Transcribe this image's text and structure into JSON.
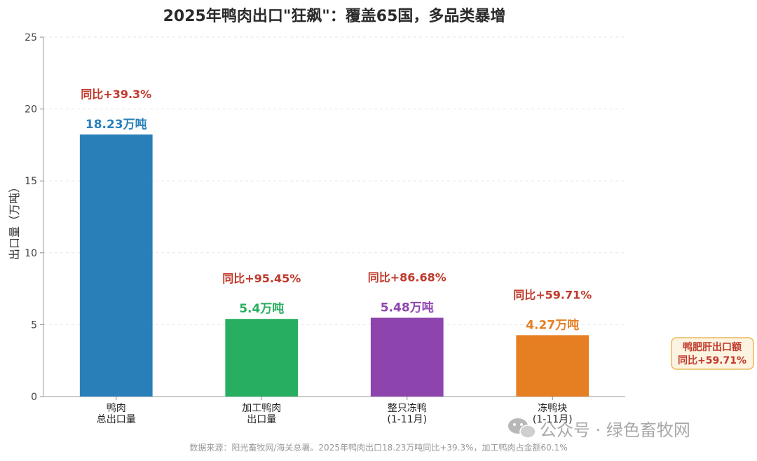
{
  "chart_data": {
    "type": "bar",
    "title": "2025年鸭肉出口\"狂飙\"：覆盖65国，多品类暴增",
    "ylabel": "出口量（万吨）",
    "ylim": [
      0,
      25
    ],
    "yticks": [
      0,
      5,
      10,
      15,
      20,
      25
    ],
    "grid": true,
    "categories": [
      [
        "鸭肉",
        "总出口量"
      ],
      [
        "加工鸭肉",
        "出口量"
      ],
      [
        "整只冻鸭",
        "(1-11月)"
      ],
      [
        "冻鸭块",
        "(1-11月)"
      ]
    ],
    "values": [
      18.23,
      5.4,
      5.48,
      4.27
    ],
    "value_labels": [
      "18.23万吨",
      "5.4万吨",
      "5.48万吨",
      "4.27万吨"
    ],
    "yoy_labels": [
      "同比+39.3%",
      "同比+95.45%",
      "同比+86.68%",
      "同比+59.71%"
    ],
    "colors": [
      "#2980b9",
      "#27ae60",
      "#8e44ad",
      "#e67e22"
    ],
    "side_note": [
      "鸭肥肝出口额",
      "同比+59.71%"
    ],
    "source": "数据来源：阳光畜牧网/海关总署。2025年鸭肉出口18.23万吨同比+39.3%，加工鸭肉占金额60.1%"
  },
  "watermark": {
    "icon": "wechat-icon",
    "text": "公众号 · 绿色畜牧网"
  }
}
